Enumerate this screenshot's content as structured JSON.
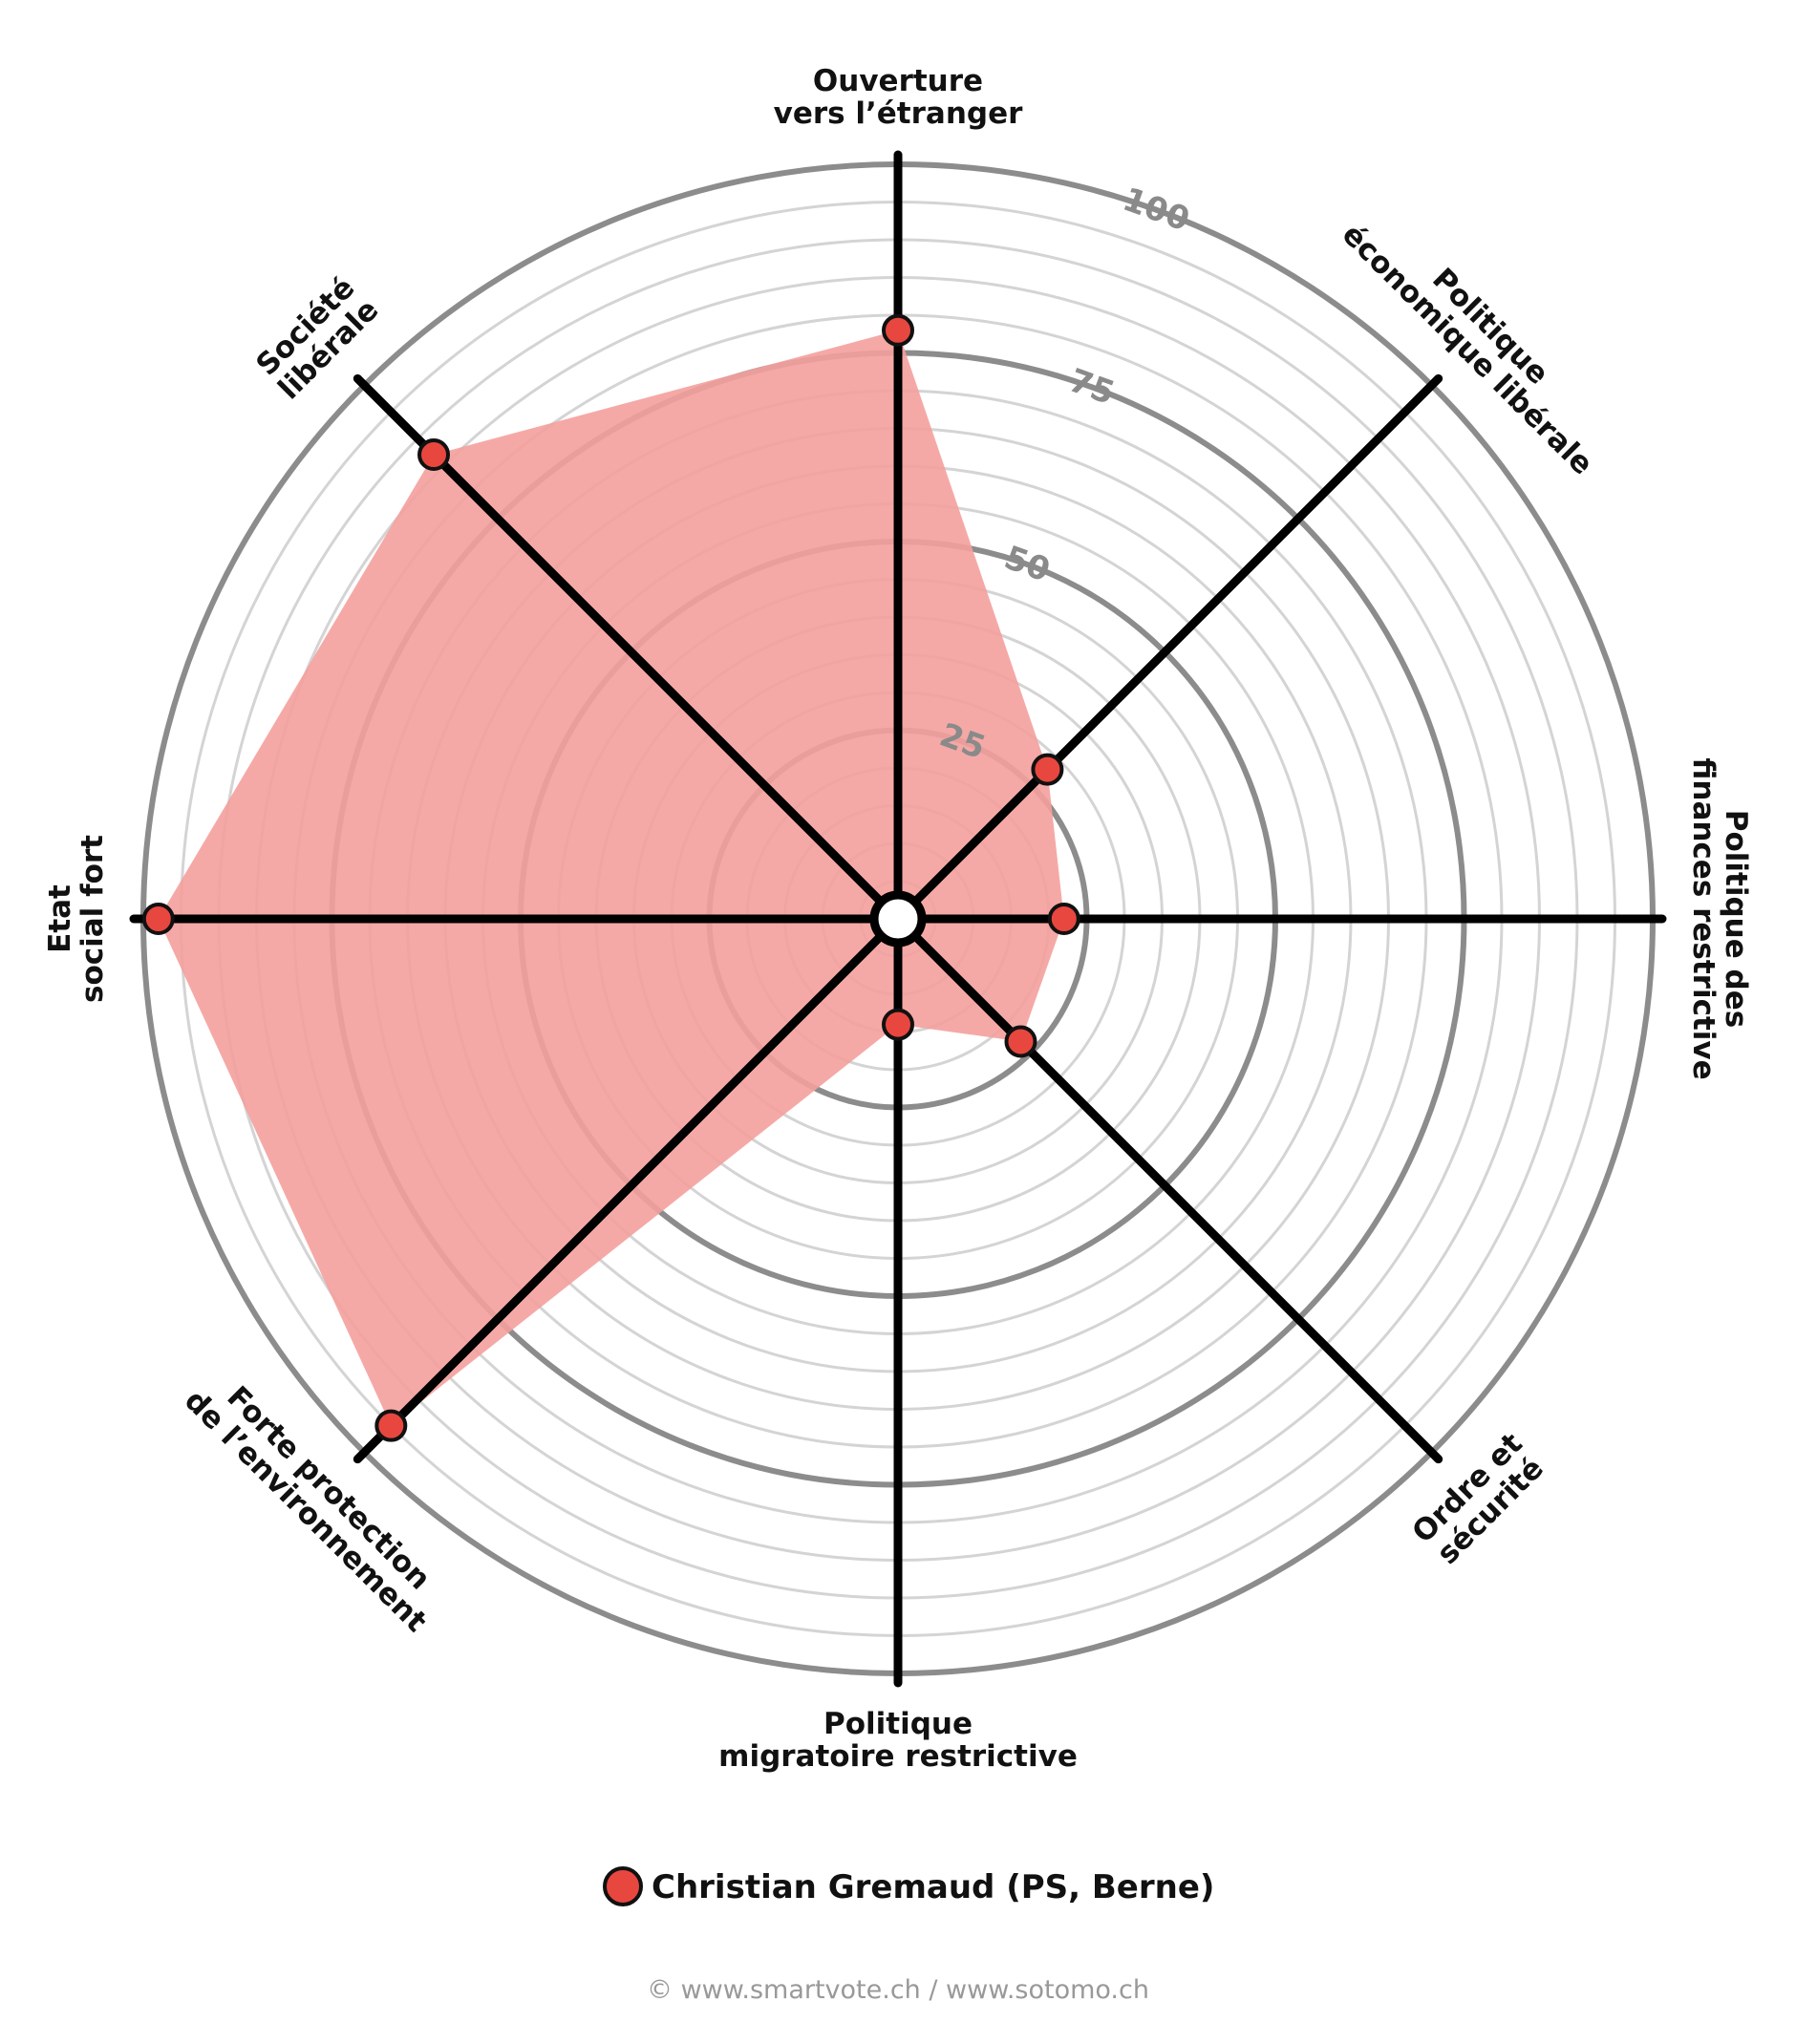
{
  "chart_data": {
    "type": "radar",
    "axes": [
      [
        "Ouverture",
        "vers l’étranger"
      ],
      [
        "Politique",
        "économique libérale"
      ],
      [
        "Politique des",
        "finances restrictive"
      ],
      [
        "Ordre et",
        "sécurité"
      ],
      [
        "Politique",
        "migratoire restrictive"
      ],
      [
        "Forte protection",
        "de l’environnement"
      ],
      [
        "Etat",
        "social fort"
      ],
      [
        "Société",
        "libérale"
      ]
    ],
    "rlim": [
      0,
      100
    ],
    "ticks": [
      25,
      50,
      75,
      100
    ],
    "series": [
      {
        "name": "Christian Gremaud (PS, Berne)",
        "color": "#e8473f",
        "fill_color": "#f4a09c",
        "values": [
          78,
          28,
          22,
          23,
          14,
          95,
          98,
          87
        ]
      }
    ],
    "legend_position": "bottom",
    "credit": "© www.smartvote.ch / www.sotomo.ch"
  }
}
